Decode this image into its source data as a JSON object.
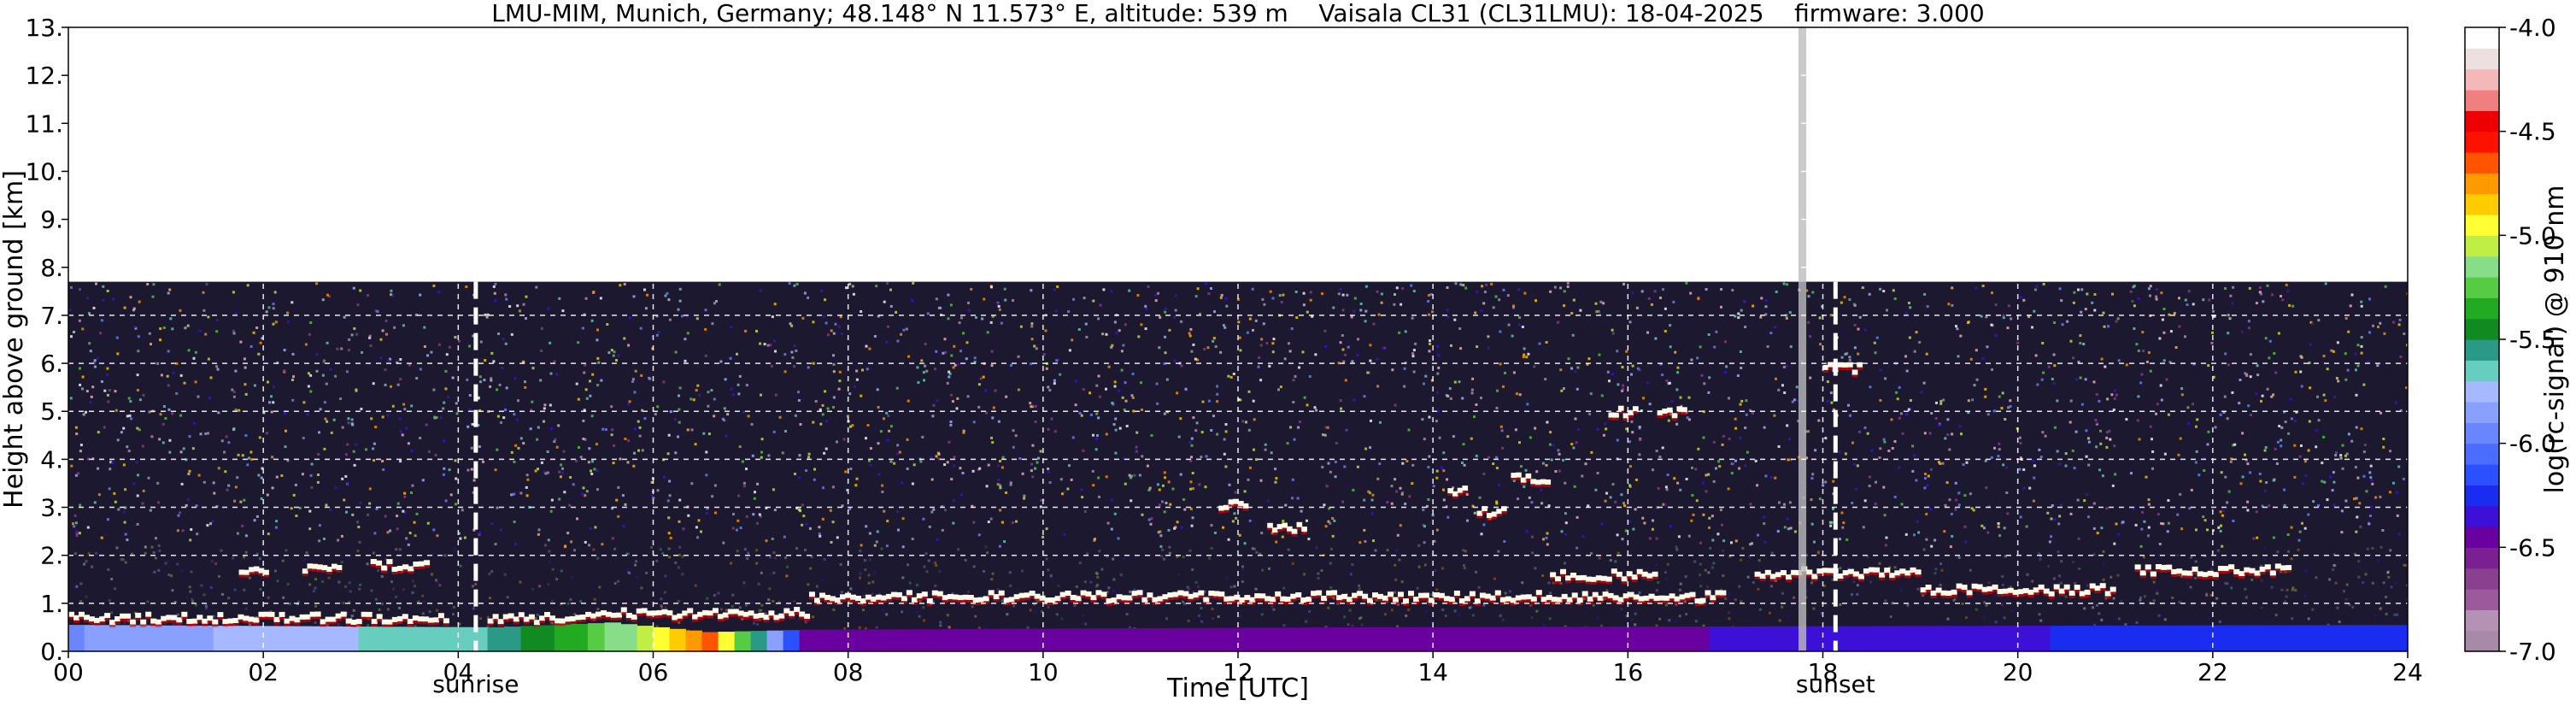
{
  "chart_data": {
    "type": "heatmap",
    "title": "LMU-MIM, Munich, Germany; 48.148° N 11.573° E, altitude: 539 m    Vaisala CL31 (CL31LMU): 18-04-2025    firmware: 3.000",
    "xlabel": "Time [UTC]",
    "ylabel": "Height above ground [km]",
    "colorbar_label": "log(rc-signal) @ 910 nm",
    "xlim": [
      0,
      24
    ],
    "ylim": [
      0,
      13
    ],
    "x_ticks": [
      {
        "value": 0,
        "label": "00"
      },
      {
        "value": 2,
        "label": "02"
      },
      {
        "value": 4,
        "label": "04"
      },
      {
        "value": 6,
        "label": "06"
      },
      {
        "value": 8,
        "label": "08"
      },
      {
        "value": 10,
        "label": "10"
      },
      {
        "value": 12,
        "label": "12"
      },
      {
        "value": 14,
        "label": "14"
      },
      {
        "value": 16,
        "label": "16"
      },
      {
        "value": 18,
        "label": "18"
      },
      {
        "value": 20,
        "label": "20"
      },
      {
        "value": 22,
        "label": "22"
      },
      {
        "value": 24,
        "label": "24"
      }
    ],
    "y_ticks": [
      {
        "value": 0,
        "label": "0."
      },
      {
        "value": 1,
        "label": "1."
      },
      {
        "value": 2,
        "label": "2."
      },
      {
        "value": 3,
        "label": "3."
      },
      {
        "value": 4,
        "label": "4."
      },
      {
        "value": 5,
        "label": "5."
      },
      {
        "value": 6,
        "label": "6."
      },
      {
        "value": 7,
        "label": "7."
      },
      {
        "value": 8,
        "label": "8."
      },
      {
        "value": 9,
        "label": "9."
      },
      {
        "value": 10,
        "label": "10."
      },
      {
        "value": 11,
        "label": "11."
      },
      {
        "value": 12,
        "label": "12."
      },
      {
        "value": 13,
        "label": "13."
      }
    ],
    "colorbar_range": [
      -7.0,
      -4.0
    ],
    "colorbar_ticks": [
      {
        "value": -4.0,
        "label": "-4.0"
      },
      {
        "value": -4.5,
        "label": "-4.5"
      },
      {
        "value": -5.0,
        "label": "-5.0"
      },
      {
        "value": -5.5,
        "label": "-5.5"
      },
      {
        "value": -6.0,
        "label": "-6.0"
      },
      {
        "value": -6.5,
        "label": "-6.5"
      },
      {
        "value": -7.0,
        "label": "-7.0"
      }
    ],
    "colorbar_colors": [
      "#a88aa8",
      "#b592b5",
      "#9a5a9c",
      "#8a3f8f",
      "#7a2090",
      "#6a00a0",
      "#3d10d8",
      "#1a2cf0",
      "#2a50ff",
      "#4a6cff",
      "#6a86ff",
      "#8aa0ff",
      "#a6b8ff",
      "#66cdbf",
      "#2a9a86",
      "#118a22",
      "#22aa22",
      "#55cc44",
      "#88dd88",
      "#c0ee44",
      "#ffff33",
      "#ffcc00",
      "#ff9900",
      "#ff5500",
      "#ff1100",
      "#ee0000",
      "#f08080",
      "#f4b8b8",
      "#ece0e0",
      "#ffffff"
    ],
    "annotations": [
      {
        "x": 4.18,
        "label": "sunrise"
      },
      {
        "x": 18.13,
        "label": "sunset"
      }
    ],
    "data_gaps": [
      {
        "x_start": 17.75,
        "x_end": 17.83
      }
    ],
    "measurement_top_km": 7.7,
    "cloud_layers": [
      {
        "t_start": 0.0,
        "t_end": 3.9,
        "height_km": 0.65
      },
      {
        "t_start": 1.75,
        "t_end": 2.05,
        "height_km": 1.65
      },
      {
        "t_start": 2.4,
        "t_end": 2.8,
        "height_km": 1.7
      },
      {
        "t_start": 3.1,
        "t_end": 3.7,
        "height_km": 1.75
      },
      {
        "t_start": 4.3,
        "t_end": 5.2,
        "height_km": 0.65
      },
      {
        "t_start": 5.2,
        "t_end": 7.6,
        "height_km": 0.75
      },
      {
        "t_start": 7.6,
        "t_end": 17.0,
        "height_km": 1.1
      },
      {
        "t_start": 11.8,
        "t_end": 12.1,
        "height_km": 3.0
      },
      {
        "t_start": 12.3,
        "t_end": 12.7,
        "height_km": 2.55
      },
      {
        "t_start": 14.15,
        "t_end": 14.35,
        "height_km": 3.3
      },
      {
        "t_start": 14.45,
        "t_end": 14.75,
        "height_km": 2.85
      },
      {
        "t_start": 14.8,
        "t_end": 15.2,
        "height_km": 3.55
      },
      {
        "t_start": 15.8,
        "t_end": 16.1,
        "height_km": 4.95
      },
      {
        "t_start": 16.3,
        "t_end": 16.6,
        "height_km": 4.95
      },
      {
        "t_start": 15.2,
        "t_end": 16.3,
        "height_km": 1.55
      },
      {
        "t_start": 17.3,
        "t_end": 19.0,
        "height_km": 1.6
      },
      {
        "t_start": 18.0,
        "t_end": 18.4,
        "height_km": 5.85
      },
      {
        "t_start": 19.0,
        "t_end": 21.0,
        "height_km": 1.25
      },
      {
        "t_start": 21.2,
        "t_end": 22.8,
        "height_km": 1.65
      }
    ],
    "aerosol_layer": [
      {
        "t": 0.0,
        "top_km": 0.55,
        "value": -5.9
      },
      {
        "t": 4.3,
        "top_km": 0.5,
        "value": -5.6
      },
      {
        "t": 5.5,
        "top_km": 0.6,
        "value": -5.2
      },
      {
        "t": 6.5,
        "top_km": 0.4,
        "value": -4.7
      },
      {
        "t": 7.5,
        "top_km": 0.45,
        "value": -6.4
      },
      {
        "t": 13.0,
        "top_km": 0.5,
        "value": -6.5
      },
      {
        "t": 24.0,
        "top_km": 0.55,
        "value": -6.2
      }
    ]
  }
}
